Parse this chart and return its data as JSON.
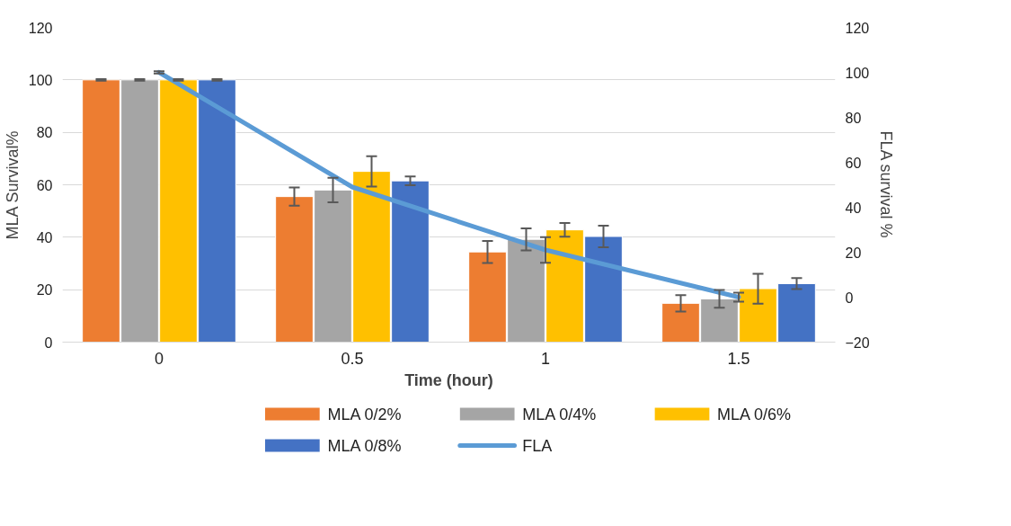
{
  "chart_data": {
    "type": "bar",
    "xlabel": "Time (hour)",
    "ylabel": "MLA Survival%",
    "y2label": "FLA survival %",
    "categories": [
      "0",
      "0.5",
      "1",
      "1.5"
    ],
    "ylim": [
      0,
      120
    ],
    "yticks": [
      0,
      20,
      40,
      60,
      80,
      100,
      120
    ],
    "y2lim": [
      -20,
      120
    ],
    "y2ticks": [
      -20,
      0,
      20,
      40,
      60,
      80,
      100,
      120
    ],
    "grid": "y",
    "legend": "bottom",
    "series": [
      {
        "name": "MLA 0/2%",
        "color": "#ed7d31",
        "values": [
          100,
          55.5,
          34.4,
          14.8
        ],
        "errors": [
          0.3,
          3.5,
          4.2,
          3.1
        ]
      },
      {
        "name": "MLA 0/4%",
        "color": "#a5a5a5",
        "values": [
          100,
          58,
          39.2,
          16.5
        ],
        "errors": [
          0.3,
          4.7,
          4.2,
          3.4
        ]
      },
      {
        "name": "MLA 0/6%",
        "color": "#ffc000",
        "values": [
          100,
          65.1,
          42.8,
          20.4
        ],
        "errors": [
          0.3,
          5.8,
          2.6,
          5.7
        ]
      },
      {
        "name": "MLA 0/8%",
        "color": "#4472c4",
        "values": [
          100,
          61.5,
          40.3,
          22.3
        ],
        "errors": [
          0.3,
          1.7,
          4.1,
          2.1
        ]
      },
      {
        "name": "FLA",
        "type": "line",
        "axis": "y2",
        "color": "#5b9bd5",
        "values": [
          100,
          49,
          21,
          0
        ],
        "errors": [
          0.5,
          null,
          5.7,
          2
        ]
      }
    ]
  }
}
